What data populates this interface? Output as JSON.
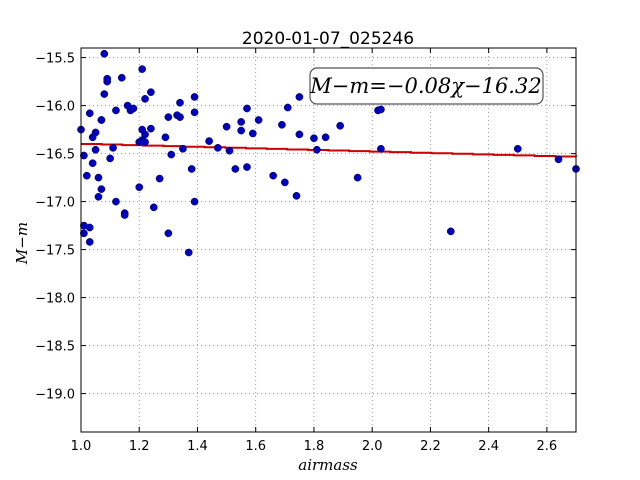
{
  "chart_data": {
    "type": "scatter",
    "title": "2020-01-07_025246",
    "xlabel": "airmass",
    "ylabel": "M−m",
    "annotation": "M−m=−0.08χ−16.32",
    "xlim": [
      1.0,
      2.7
    ],
    "ylim": [
      -19.4,
      -15.4
    ],
    "y_inverted": true,
    "grid": true,
    "x_ticks": [
      1.0,
      1.2,
      1.4,
      1.6,
      1.8,
      2.0,
      2.2,
      2.4,
      2.6
    ],
    "x_tick_labels": [
      "1.0",
      "1.2",
      "1.4",
      "1.6",
      "1.8",
      "2.0",
      "2.2",
      "2.4",
      "2.6"
    ],
    "y_ticks": [
      -15.5,
      -16.0,
      -16.5,
      -17.0,
      -17.5,
      -18.0,
      -18.5,
      -19.0
    ],
    "y_tick_labels": [
      "−15.5",
      "−16.0",
      "−16.5",
      "−17.0",
      "−17.5",
      "−18.0",
      "−18.5",
      "−19.0"
    ],
    "colors": {
      "points": "#0000bf",
      "fit": "#cc0000",
      "grid": "#8c8c8c"
    },
    "fit_line": {
      "slope": -0.08,
      "intercept": -16.32
    },
    "points": [
      [
        1.0,
        -16.25
      ],
      [
        1.01,
        -16.52
      ],
      [
        1.01,
        -17.25
      ],
      [
        1.01,
        -17.33
      ],
      [
        1.02,
        -16.73
      ],
      [
        1.03,
        -17.27
      ],
      [
        1.03,
        -17.42
      ],
      [
        1.03,
        -16.08
      ],
      [
        1.04,
        -16.33
      ],
      [
        1.04,
        -16.6
      ],
      [
        1.05,
        -16.46
      ],
      [
        1.05,
        -16.28
      ],
      [
        1.06,
        -16.75
      ],
      [
        1.06,
        -16.95
      ],
      [
        1.07,
        -16.15
      ],
      [
        1.07,
        -16.87
      ],
      [
        1.07,
        -16.15
      ],
      [
        1.08,
        -15.46
      ],
      [
        1.08,
        -15.88
      ],
      [
        1.09,
        -15.75
      ],
      [
        1.09,
        -15.72
      ],
      [
        1.1,
        -16.55
      ],
      [
        1.11,
        -16.44
      ],
      [
        1.12,
        -17.0
      ],
      [
        1.12,
        -16.05
      ],
      [
        1.14,
        -15.71
      ],
      [
        1.15,
        -17.12
      ],
      [
        1.15,
        -17.14
      ],
      [
        1.16,
        -16.0
      ],
      [
        1.17,
        -16.05
      ],
      [
        1.18,
        -16.03
      ],
      [
        1.2,
        -16.85
      ],
      [
        1.2,
        -16.38
      ],
      [
        1.21,
        -15.62
      ],
      [
        1.21,
        -16.25
      ],
      [
        1.21,
        -16.36
      ],
      [
        1.22,
        -16.3
      ],
      [
        1.22,
        -16.38
      ],
      [
        1.22,
        -15.93
      ],
      [
        1.24,
        -16.24
      ],
      [
        1.24,
        -15.86
      ],
      [
        1.25,
        -17.06
      ],
      [
        1.27,
        -16.76
      ],
      [
        1.29,
        -16.33
      ],
      [
        1.3,
        -17.33
      ],
      [
        1.3,
        -16.12
      ],
      [
        1.31,
        -16.51
      ],
      [
        1.33,
        -16.1
      ],
      [
        1.34,
        -15.97
      ],
      [
        1.34,
        -16.12
      ],
      [
        1.35,
        -16.45
      ],
      [
        1.37,
        -17.53
      ],
      [
        1.38,
        -16.66
      ],
      [
        1.39,
        -17.0
      ],
      [
        1.39,
        -15.91
      ],
      [
        1.39,
        -16.07
      ],
      [
        1.44,
        -16.37
      ],
      [
        1.47,
        -16.44
      ],
      [
        1.5,
        -16.22
      ],
      [
        1.51,
        -16.47
      ],
      [
        1.53,
        -16.66
      ],
      [
        1.55,
        -16.17
      ],
      [
        1.55,
        -16.26
      ],
      [
        1.57,
        -16.03
      ],
      [
        1.57,
        -16.64
      ],
      [
        1.59,
        -16.29
      ],
      [
        1.61,
        -16.15
      ],
      [
        1.66,
        -16.73
      ],
      [
        1.69,
        -16.2
      ],
      [
        1.7,
        -16.8
      ],
      [
        1.71,
        -16.02
      ],
      [
        1.74,
        -16.94
      ],
      [
        1.75,
        -16.3
      ],
      [
        1.75,
        -15.91
      ],
      [
        1.8,
        -16.34
      ],
      [
        1.81,
        -16.46
      ],
      [
        1.84,
        -16.33
      ],
      [
        1.89,
        -16.21
      ],
      [
        1.95,
        -16.75
      ],
      [
        2.02,
        -16.05
      ],
      [
        2.03,
        -16.04
      ],
      [
        2.03,
        -16.45
      ],
      [
        2.27,
        -17.31
      ],
      [
        2.5,
        -16.45
      ],
      [
        2.64,
        -16.56
      ],
      [
        2.7,
        -16.66
      ]
    ]
  }
}
